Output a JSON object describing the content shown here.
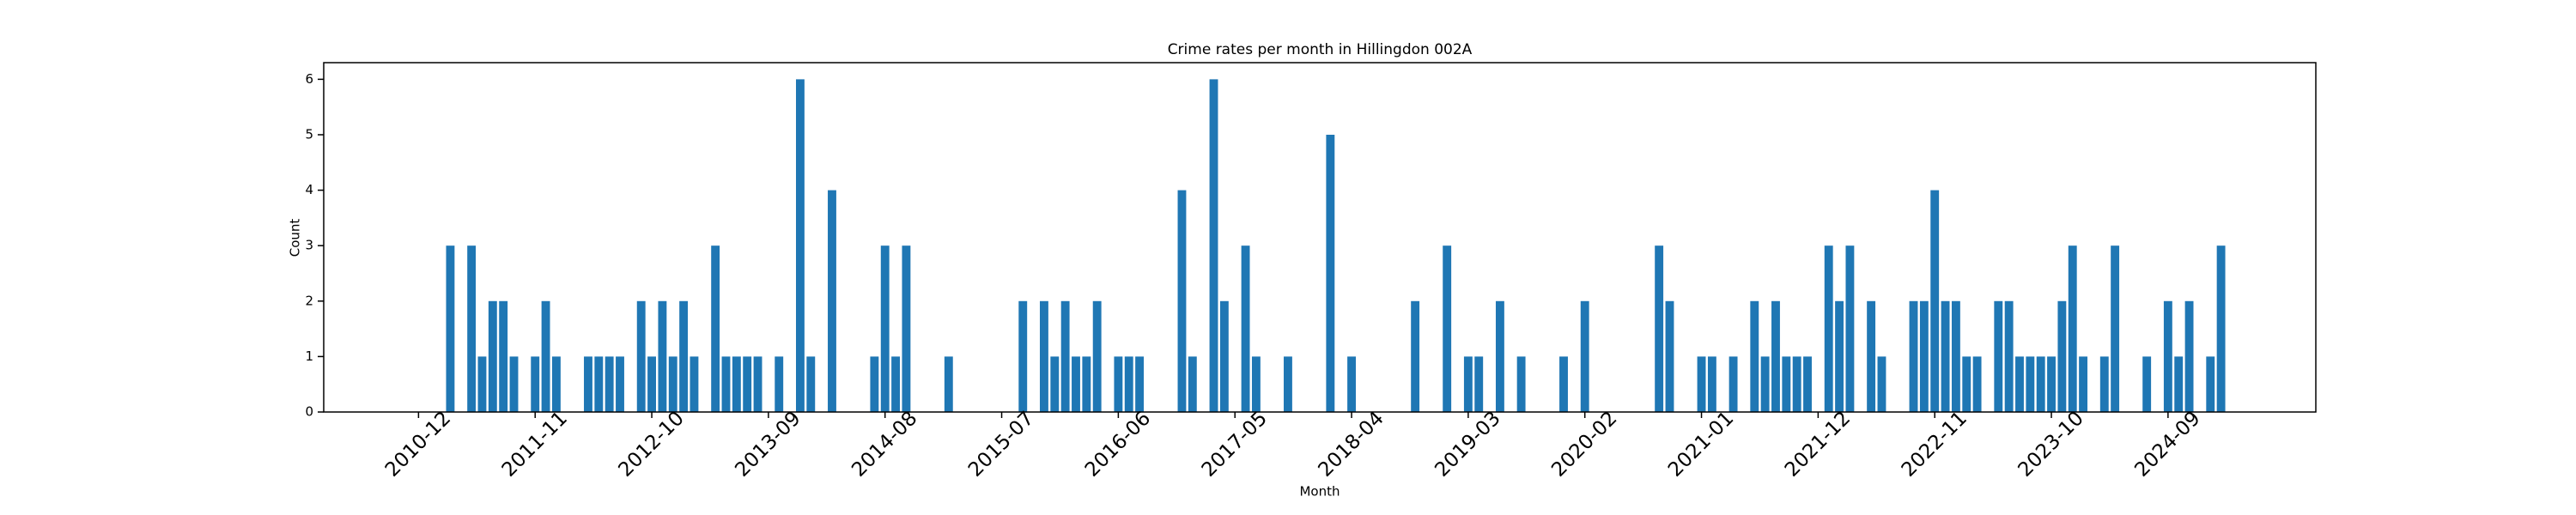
{
  "chart_data": {
    "type": "bar",
    "title": "Crime rates per month in Hillingdon 002A",
    "x_label": "Month",
    "y_label": "Count",
    "color": "#1f77b4",
    "categories": [
      "2010-12",
      null,
      null,
      null,
      null,
      null,
      null,
      null,
      null,
      null,
      null,
      "2011-11",
      null,
      null,
      null,
      null,
      null,
      null,
      null,
      null,
      null,
      null,
      "2012-10",
      null,
      null,
      null,
      null,
      null,
      null,
      null,
      null,
      null,
      null,
      "2013-09",
      null,
      null,
      null,
      null,
      null,
      null,
      null,
      null,
      null,
      null,
      "2014-08",
      null,
      null,
      null,
      null,
      null,
      null,
      null,
      null,
      null,
      null,
      "2015-07",
      null,
      null,
      null,
      null,
      null,
      null,
      null,
      null,
      null,
      null,
      "2016-06",
      null,
      null,
      null,
      null,
      null,
      null,
      null,
      null,
      null,
      null,
      "2017-05",
      null,
      null,
      null,
      null,
      null,
      null,
      null,
      null,
      null,
      null,
      "2018-04",
      null,
      null,
      null,
      null,
      null,
      null,
      null,
      null,
      null,
      null,
      "2019-03",
      null,
      null,
      null,
      null,
      null,
      null,
      null,
      null,
      null,
      null,
      "2020-02",
      null,
      null,
      null,
      null,
      null,
      null,
      null,
      null,
      null,
      null,
      "2021-01",
      null,
      null,
      null,
      null,
      null,
      null,
      null,
      null,
      null,
      null,
      "2021-12",
      null,
      null,
      null,
      null,
      null,
      null,
      null,
      null,
      null,
      null,
      "2022-11",
      null,
      null,
      null,
      null,
      null,
      null,
      null,
      null,
      null,
      null,
      "2023-10",
      null,
      null,
      null,
      null,
      null,
      null,
      null,
      null,
      null,
      null,
      "2024-09",
      null,
      null,
      null,
      null,
      null
    ],
    "values": [
      0,
      0,
      0,
      3,
      0,
      3,
      1,
      2,
      2,
      1,
      0,
      1,
      2,
      1,
      0,
      0,
      1,
      1,
      1,
      1,
      0,
      2,
      1,
      2,
      1,
      2,
      1,
      0,
      3,
      1,
      1,
      1,
      1,
      0,
      1,
      0,
      6,
      1,
      0,
      4,
      0,
      0,
      0,
      1,
      3,
      1,
      3,
      0,
      0,
      0,
      1,
      0,
      0,
      0,
      0,
      0,
      0,
      2,
      0,
      2,
      1,
      2,
      1,
      1,
      2,
      0,
      1,
      1,
      1,
      0,
      0,
      0,
      4,
      1,
      0,
      6,
      2,
      0,
      3,
      1,
      0,
      0,
      1,
      0,
      0,
      0,
      5,
      0,
      1,
      0,
      0,
      0,
      0,
      0,
      2,
      0,
      0,
      3,
      0,
      1,
      1,
      0,
      2,
      0,
      1,
      0,
      0,
      0,
      1,
      0,
      2,
      0,
      0,
      0,
      0,
      0,
      0,
      3,
      2,
      0,
      0,
      1,
      1,
      0,
      1,
      0,
      2,
      1,
      2,
      1,
      1,
      1,
      0,
      3,
      2,
      3,
      0,
      2,
      1,
      0,
      0,
      2,
      2,
      4,
      2,
      2,
      1,
      1,
      0,
      2,
      2,
      1,
      1,
      1,
      1,
      2,
      3,
      1,
      0,
      1,
      3,
      0,
      0,
      1,
      0,
      2,
      1,
      2,
      0,
      1,
      3
    ],
    "ylim": [
      0,
      6.3
    ],
    "yticks": [
      0,
      1,
      2,
      3,
      4,
      5,
      6
    ],
    "grid": false
  }
}
